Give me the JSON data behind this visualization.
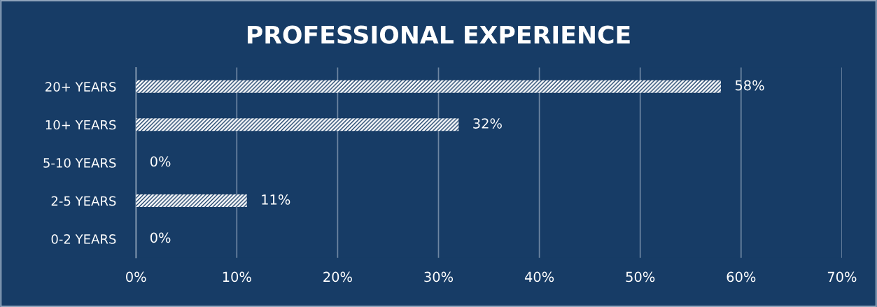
{
  "chart_data": {
    "type": "bar",
    "orientation": "horizontal",
    "title": "PROFESSIONAL EXPERIENCE",
    "categories": [
      "20+ YEARS",
      "10+ YEARS",
      "5-10 YEARS",
      "2-5 YEARS",
      "0-2 YEARS"
    ],
    "values": [
      58,
      32,
      0,
      11,
      0
    ],
    "value_labels": [
      "58%",
      "32%",
      "0%",
      "11%",
      "0%"
    ],
    "color": "#ffffff",
    "xlim": [
      0,
      70
    ],
    "xticks": [
      {
        "value": 0,
        "label": "0%"
      },
      {
        "value": 10,
        "label": "10%"
      },
      {
        "value": 20,
        "label": "20%"
      },
      {
        "value": 30,
        "label": "30%"
      },
      {
        "value": 40,
        "label": "40%"
      },
      {
        "value": 50,
        "label": "50%"
      },
      {
        "value": 60,
        "label": "60%"
      },
      {
        "value": 70,
        "label": "70%"
      }
    ],
    "grid": "x",
    "legend": false
  }
}
